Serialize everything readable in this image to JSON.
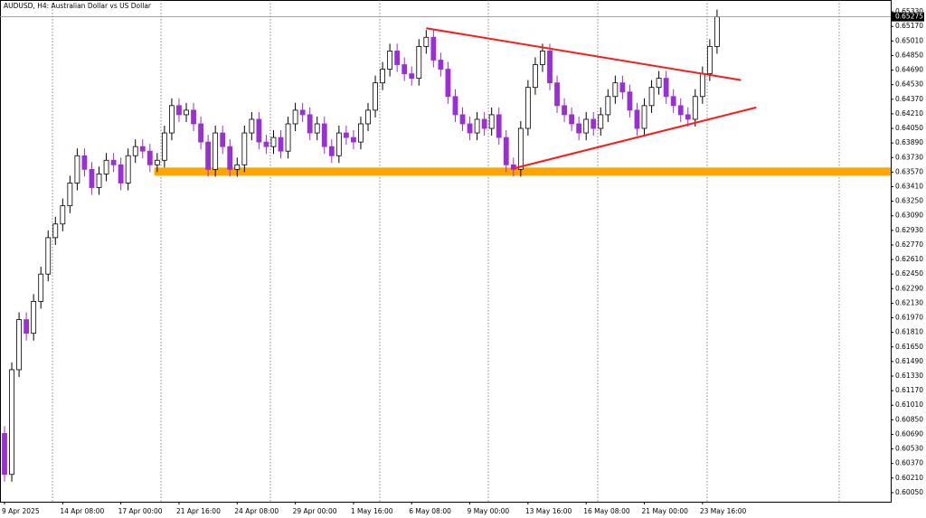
{
  "chart_data": {
    "type": "candlestick",
    "title": "AUDUSD, H4:  Australian Dollar vs US Dollar",
    "categories": [
      "9 Apr 2025",
      null,
      null,
      null,
      null,
      null,
      null,
      null,
      "14 Apr 08:00",
      null,
      null,
      null,
      null,
      null,
      null,
      null,
      "17 Apr 00:00",
      null,
      null,
      null,
      null,
      null,
      null,
      null,
      "21 Apr 16:00",
      null,
      null,
      null,
      null,
      null,
      null,
      null,
      "24 Apr 08:00",
      null,
      null,
      null,
      null,
      null,
      null,
      null,
      "29 Apr 00:00",
      null,
      null,
      null,
      null,
      null,
      null,
      null,
      "1 May 16:00",
      null,
      null,
      null,
      null,
      null,
      null,
      null,
      "6 May 08:00",
      null,
      null,
      null,
      null,
      null,
      null,
      null,
      "9 May 00:00",
      null,
      null,
      null,
      null,
      null,
      null,
      null,
      "13 May 16:00",
      null,
      null,
      null,
      null,
      null,
      null,
      null,
      "16 May 08:00",
      null,
      null,
      null,
      null,
      null,
      null,
      null,
      "21 May 00:00",
      null,
      null,
      null,
      null,
      null,
      null,
      null,
      "23 May 16:00",
      null,
      null
    ],
    "open": [
      0.607,
      0.6025,
      0.614,
      0.6195,
      0.618,
      0.6215,
      0.6245,
      0.6285,
      0.63,
      0.632,
      0.6345,
      0.6375,
      0.636,
      0.634,
      0.6355,
      0.637,
      0.6365,
      0.6345,
      0.6375,
      0.6385,
      0.638,
      0.6365,
      0.637,
      0.64,
      0.643,
      0.642,
      0.6425,
      0.641,
      0.639,
      0.636,
      0.64,
      0.6385,
      0.636,
      0.6365,
      0.64,
      0.6415,
      0.639,
      0.6385,
      0.6395,
      0.638,
      0.641,
      0.6425,
      0.642,
      0.64,
      0.641,
      0.6385,
      0.6375,
      0.64,
      0.6395,
      0.639,
      0.641,
      0.6425,
      0.6455,
      0.647,
      0.649,
      0.6475,
      0.6465,
      0.646,
      0.6495,
      0.6505,
      0.648,
      0.647,
      0.644,
      0.642,
      0.641,
      0.64,
      0.6415,
      0.6405,
      0.642,
      0.6395,
      0.6365,
      0.636,
      0.6405,
      0.645,
      0.6475,
      0.649,
      0.6455,
      0.643,
      0.642,
      0.641,
      0.64,
      0.6415,
      0.6405,
      0.642,
      0.644,
      0.6455,
      0.6445,
      0.6425,
      0.6405,
      0.643,
      0.645,
      0.646,
      0.644,
      0.643,
      0.642,
      0.6415,
      0.644,
      0.6465,
      0.6495
    ],
    "high": [
      0.6078,
      0.6148,
      0.6203,
      0.6203,
      0.6223,
      0.6253,
      0.6293,
      0.6308,
      0.6328,
      0.6353,
      0.6383,
      0.6383,
      0.6368,
      0.6363,
      0.6378,
      0.6378,
      0.6373,
      0.6383,
      0.6393,
      0.6393,
      0.6388,
      0.6378,
      0.6408,
      0.6438,
      0.6438,
      0.6433,
      0.6433,
      0.6418,
      0.6398,
      0.6408,
      0.6408,
      0.6393,
      0.6373,
      0.6408,
      0.6423,
      0.6423,
      0.6398,
      0.6403,
      0.6403,
      0.6418,
      0.6433,
      0.6433,
      0.6428,
      0.6418,
      0.6418,
      0.6393,
      0.6408,
      0.6408,
      0.6403,
      0.6418,
      0.6433,
      0.6463,
      0.6478,
      0.6498,
      0.6498,
      0.6483,
      0.6473,
      0.6503,
      0.6513,
      0.6513,
      0.6488,
      0.6478,
      0.6448,
      0.6428,
      0.6418,
      0.6423,
      0.6423,
      0.6428,
      0.6428,
      0.6403,
      0.6373,
      0.6413,
      0.6458,
      0.6483,
      0.6498,
      0.6498,
      0.6463,
      0.6438,
      0.6428,
      0.6418,
      0.6423,
      0.6423,
      0.6428,
      0.6448,
      0.6463,
      0.6463,
      0.6453,
      0.6433,
      0.6438,
      0.6458,
      0.6468,
      0.6468,
      0.6448,
      0.6438,
      0.6428,
      0.6448,
      0.6473,
      0.6503,
      0.65355
    ],
    "low": [
      0.6017,
      0.6017,
      0.6132,
      0.6172,
      0.6172,
      0.6207,
      0.6237,
      0.6277,
      0.6292,
      0.6312,
      0.6337,
      0.6352,
      0.6332,
      0.6332,
      0.6347,
      0.6357,
      0.6337,
      0.6337,
      0.6367,
      0.6372,
      0.6357,
      0.6357,
      0.6362,
      0.6392,
      0.6412,
      0.6412,
      0.6402,
      0.6382,
      0.6352,
      0.6352,
      0.6377,
      0.6352,
      0.6352,
      0.6357,
      0.6392,
      0.6382,
      0.6377,
      0.6377,
      0.6372,
      0.6372,
      0.6402,
      0.6412,
      0.6392,
      0.6392,
      0.6377,
      0.6367,
      0.6367,
      0.6387,
      0.6382,
      0.6382,
      0.6402,
      0.6417,
      0.6447,
      0.6462,
      0.6467,
      0.6457,
      0.6452,
      0.6452,
      0.6487,
      0.6472,
      0.6462,
      0.6432,
      0.6412,
      0.6402,
      0.6392,
      0.6392,
      0.6397,
      0.6397,
      0.6387,
      0.6357,
      0.6352,
      0.6352,
      0.6397,
      0.6442,
      0.6467,
      0.6447,
      0.6422,
      0.6412,
      0.6402,
      0.6392,
      0.6392,
      0.6397,
      0.6397,
      0.6412,
      0.6432,
      0.6437,
      0.6417,
      0.6397,
      0.6397,
      0.6422,
      0.6442,
      0.6432,
      0.6422,
      0.6412,
      0.6407,
      0.6407,
      0.6432,
      0.6457,
      0.6487
    ],
    "close": [
      0.6025,
      0.614,
      0.6195,
      0.618,
      0.6215,
      0.6245,
      0.6285,
      0.63,
      0.632,
      0.6345,
      0.6375,
      0.636,
      0.634,
      0.6355,
      0.637,
      0.6365,
      0.6345,
      0.6375,
      0.6385,
      0.638,
      0.6365,
      0.637,
      0.64,
      0.643,
      0.642,
      0.6425,
      0.641,
      0.639,
      0.636,
      0.64,
      0.6385,
      0.636,
      0.6365,
      0.64,
      0.6415,
      0.639,
      0.6385,
      0.6395,
      0.638,
      0.641,
      0.6425,
      0.642,
      0.64,
      0.641,
      0.6385,
      0.6375,
      0.64,
      0.6395,
      0.639,
      0.641,
      0.6425,
      0.6455,
      0.647,
      0.649,
      0.6475,
      0.6465,
      0.646,
      0.6495,
      0.6505,
      0.648,
      0.647,
      0.644,
      0.642,
      0.641,
      0.64,
      0.6415,
      0.6405,
      0.642,
      0.6395,
      0.6365,
      0.636,
      0.6405,
      0.645,
      0.6475,
      0.649,
      0.6455,
      0.643,
      0.642,
      0.641,
      0.64,
      0.6415,
      0.6405,
      0.642,
      0.644,
      0.6455,
      0.6445,
      0.6425,
      0.6405,
      0.643,
      0.645,
      0.646,
      0.644,
      0.643,
      0.642,
      0.6415,
      0.644,
      0.6465,
      0.6495,
      0.65275
    ],
    "up_color": "#ffffff",
    "down_color": "#9b2fd6",
    "current_price": 0.65275,
    "ylim": [
      0.5995,
      0.6546
    ],
    "yticks": [
      {
        "value": 0.6005,
        "label": "0.60050"
      },
      {
        "value": 0.6021,
        "label": "0.60210"
      },
      {
        "value": 0.6037,
        "label": "0.60370"
      },
      {
        "value": 0.6053,
        "label": "0.60530"
      },
      {
        "value": 0.6069,
        "label": "0.60690"
      },
      {
        "value": 0.6085,
        "label": "0.60850"
      },
      {
        "value": 0.6101,
        "label": "0.61010"
      },
      {
        "value": 0.6117,
        "label": "0.61170"
      },
      {
        "value": 0.6133,
        "label": "0.61330"
      },
      {
        "value": 0.6149,
        "label": "0.61490"
      },
      {
        "value": 0.6165,
        "label": "0.61650"
      },
      {
        "value": 0.6181,
        "label": "0.61810"
      },
      {
        "value": 0.6197,
        "label": "0.61970"
      },
      {
        "value": 0.6213,
        "label": "0.62130"
      },
      {
        "value": 0.6229,
        "label": "0.62290"
      },
      {
        "value": 0.6245,
        "label": "0.62450"
      },
      {
        "value": 0.6261,
        "label": "0.62610"
      },
      {
        "value": 0.6277,
        "label": "0.62770"
      },
      {
        "value": 0.6293,
        "label": "0.62930"
      },
      {
        "value": 0.6309,
        "label": "0.63090"
      },
      {
        "value": 0.6325,
        "label": "0.63250"
      },
      {
        "value": 0.6341,
        "label": "0.63410"
      },
      {
        "value": 0.6357,
        "label": "0.63570"
      },
      {
        "value": 0.6373,
        "label": "0.63730"
      },
      {
        "value": 0.6389,
        "label": "0.63890"
      },
      {
        "value": 0.6405,
        "label": "0.64050"
      },
      {
        "value": 0.6421,
        "label": "0.64210"
      },
      {
        "value": 0.6437,
        "label": "0.64370"
      },
      {
        "value": 0.6453,
        "label": "0.64530"
      },
      {
        "value": 0.6469,
        "label": "0.64690"
      },
      {
        "value": 0.6485,
        "label": "0.64850"
      },
      {
        "value": 0.6501,
        "label": "0.65010"
      },
      {
        "value": 0.6517,
        "label": "0.65170"
      },
      {
        "value": 0.6533,
        "label": "0.65330"
      }
    ],
    "support_zone": {
      "ylim": [
        0.6353,
        0.6362
      ],
      "x_start": 20.6,
      "color": "#ffa500"
    },
    "trendlines": [
      {
        "x": [
          58,
          101.3
        ],
        "y": [
          0.6515,
          0.6458
        ],
        "color": "#ff1a1a"
      },
      {
        "x": [
          70,
          103.4
        ],
        "y": [
          0.6361,
          0.6428
        ],
        "color": "#ff1a1a"
      }
    ]
  }
}
